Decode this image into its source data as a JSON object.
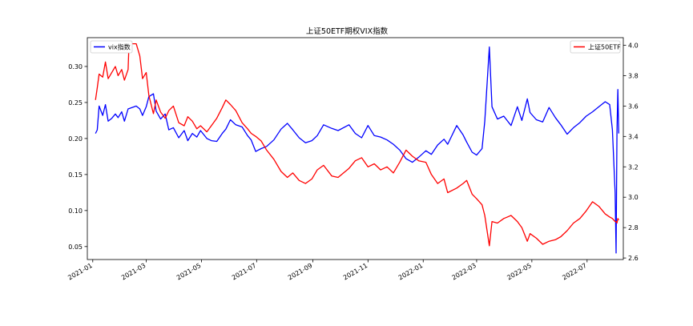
{
  "chart_data": {
    "type": "line",
    "title": "上证50ETF期权VIX指数",
    "xlabel": "",
    "x_ticks": [
      "2021-01",
      "2021-03",
      "2021-05",
      "2021-07",
      "2021-09",
      "2021-11",
      "2022-01",
      "2022-03",
      "2022-05",
      "2022-07"
    ],
    "y_left": {
      "label": "",
      "ticks": [
        "0.05",
        "0.10",
        "0.15",
        "0.20",
        "0.25",
        "0.30"
      ],
      "range": [
        0.032,
        0.34
      ]
    },
    "y_right": {
      "label": "",
      "ticks": [
        "2.6",
        "2.8",
        "3.0",
        "3.2",
        "3.4",
        "3.6",
        "3.8",
        "4.0"
      ],
      "range": [
        2.59,
        4.05
      ]
    },
    "x_range": [
      "2020-12-26",
      "2022-08-10"
    ],
    "legend_left": {
      "position": "upper left",
      "entries": [
        "vix指数"
      ]
    },
    "legend_right": {
      "position": "upper right",
      "entries": [
        "上证50ETF"
      ]
    },
    "series": [
      {
        "name": "vix指数",
        "axis": "left",
        "color": "#0000ff",
        "points": [
          [
            "2021-01-04",
            0.207
          ],
          [
            "2021-01-06",
            0.212
          ],
          [
            "2021-01-08",
            0.245
          ],
          [
            "2021-01-12",
            0.232
          ],
          [
            "2021-01-15",
            0.247
          ],
          [
            "2021-01-18",
            0.224
          ],
          [
            "2021-01-22",
            0.228
          ],
          [
            "2021-01-26",
            0.234
          ],
          [
            "2021-01-29",
            0.229
          ],
          [
            "2021-02-02",
            0.237
          ],
          [
            "2021-02-05",
            0.224
          ],
          [
            "2021-02-09",
            0.241
          ],
          [
            "2021-02-18",
            0.245
          ],
          [
            "2021-02-22",
            0.241
          ],
          [
            "2021-02-25",
            0.232
          ],
          [
            "2021-03-01",
            0.244
          ],
          [
            "2021-03-04",
            0.258
          ],
          [
            "2021-03-09",
            0.262
          ],
          [
            "2021-03-12",
            0.238
          ],
          [
            "2021-03-17",
            0.227
          ],
          [
            "2021-03-22",
            0.234
          ],
          [
            "2021-03-26",
            0.212
          ],
          [
            "2021-03-31",
            0.215
          ],
          [
            "2021-04-06",
            0.201
          ],
          [
            "2021-04-12",
            0.211
          ],
          [
            "2021-04-16",
            0.197
          ],
          [
            "2021-04-21",
            0.207
          ],
          [
            "2021-04-26",
            0.202
          ],
          [
            "2021-04-30",
            0.211
          ],
          [
            "2021-05-07",
            0.2
          ],
          [
            "2021-05-12",
            0.197
          ],
          [
            "2021-05-18",
            0.196
          ],
          [
            "2021-05-24",
            0.207
          ],
          [
            "2021-05-28",
            0.213
          ],
          [
            "2021-06-02",
            0.226
          ],
          [
            "2021-06-08",
            0.219
          ],
          [
            "2021-06-15",
            0.216
          ],
          [
            "2021-06-21",
            0.204
          ],
          [
            "2021-06-25",
            0.198
          ],
          [
            "2021-06-30",
            0.182
          ],
          [
            "2021-07-06",
            0.186
          ],
          [
            "2021-07-12",
            0.189
          ],
          [
            "2021-07-20",
            0.198
          ],
          [
            "2021-07-28",
            0.213
          ],
          [
            "2021-08-04",
            0.221
          ],
          [
            "2021-08-10",
            0.212
          ],
          [
            "2021-08-17",
            0.201
          ],
          [
            "2021-08-24",
            0.194
          ],
          [
            "2021-08-31",
            0.197
          ],
          [
            "2021-09-06",
            0.204
          ],
          [
            "2021-09-13",
            0.219
          ],
          [
            "2021-09-22",
            0.214
          ],
          [
            "2021-09-29",
            0.211
          ],
          [
            "2021-10-11",
            0.219
          ],
          [
            "2021-10-18",
            0.207
          ],
          [
            "2021-10-25",
            0.201
          ],
          [
            "2021-11-01",
            0.218
          ],
          [
            "2021-11-08",
            0.204
          ],
          [
            "2021-11-15",
            0.202
          ],
          [
            "2021-11-22",
            0.198
          ],
          [
            "2021-11-29",
            0.192
          ],
          [
            "2021-12-06",
            0.184
          ],
          [
            "2021-12-13",
            0.172
          ],
          [
            "2021-12-20",
            0.167
          ],
          [
            "2021-12-27",
            0.174
          ],
          [
            "2022-01-04",
            0.183
          ],
          [
            "2022-01-10",
            0.178
          ],
          [
            "2022-01-17",
            0.191
          ],
          [
            "2022-01-24",
            0.199
          ],
          [
            "2022-01-28",
            0.192
          ],
          [
            "2022-02-07",
            0.218
          ],
          [
            "2022-02-14",
            0.205
          ],
          [
            "2022-02-18",
            0.195
          ],
          [
            "2022-02-24",
            0.181
          ],
          [
            "2022-03-01",
            0.177
          ],
          [
            "2022-03-07",
            0.186
          ],
          [
            "2022-03-10",
            0.224
          ],
          [
            "2022-03-15",
            0.327
          ],
          [
            "2022-03-18",
            0.244
          ],
          [
            "2022-03-24",
            0.227
          ],
          [
            "2022-03-31",
            0.231
          ],
          [
            "2022-04-08",
            0.218
          ],
          [
            "2022-04-15",
            0.244
          ],
          [
            "2022-04-20",
            0.225
          ],
          [
            "2022-04-26",
            0.255
          ],
          [
            "2022-04-29",
            0.236
          ],
          [
            "2022-05-06",
            0.226
          ],
          [
            "2022-05-13",
            0.223
          ],
          [
            "2022-05-20",
            0.243
          ],
          [
            "2022-05-27",
            0.229
          ],
          [
            "2022-06-02",
            0.219
          ],
          [
            "2022-06-09",
            0.206
          ],
          [
            "2022-06-16",
            0.215
          ],
          [
            "2022-06-23",
            0.222
          ],
          [
            "2022-06-30",
            0.231
          ],
          [
            "2022-07-07",
            0.237
          ],
          [
            "2022-07-14",
            0.244
          ],
          [
            "2022-07-21",
            0.251
          ],
          [
            "2022-07-26",
            0.247
          ],
          [
            "2022-07-29",
            0.212
          ],
          [
            "2022-08-01",
            0.125
          ],
          [
            "2022-08-02",
            0.041
          ],
          [
            "2022-08-03",
            0.209
          ],
          [
            "2022-08-04",
            0.268
          ],
          [
            "2022-08-05",
            0.207
          ]
        ]
      },
      {
        "name": "上证50ETF",
        "axis": "right",
        "color": "#ff0000",
        "points": [
          [
            "2021-01-04",
            3.64
          ],
          [
            "2021-01-06",
            3.72
          ],
          [
            "2021-01-08",
            3.81
          ],
          [
            "2021-01-12",
            3.79
          ],
          [
            "2021-01-15",
            3.89
          ],
          [
            "2021-01-18",
            3.78
          ],
          [
            "2021-01-22",
            3.82
          ],
          [
            "2021-01-26",
            3.86
          ],
          [
            "2021-01-29",
            3.8
          ],
          [
            "2021-02-02",
            3.84
          ],
          [
            "2021-02-05",
            3.77
          ],
          [
            "2021-02-09",
            3.84
          ],
          [
            "2021-02-10",
            4.01
          ],
          [
            "2021-02-18",
            4.01
          ],
          [
            "2021-02-22",
            3.93
          ],
          [
            "2021-02-25",
            3.78
          ],
          [
            "2021-03-01",
            3.82
          ],
          [
            "2021-03-04",
            3.67
          ],
          [
            "2021-03-09",
            3.55
          ],
          [
            "2021-03-12",
            3.64
          ],
          [
            "2021-03-17",
            3.56
          ],
          [
            "2021-03-22",
            3.52
          ],
          [
            "2021-03-26",
            3.57
          ],
          [
            "2021-03-31",
            3.6
          ],
          [
            "2021-04-06",
            3.49
          ],
          [
            "2021-04-12",
            3.47
          ],
          [
            "2021-04-16",
            3.53
          ],
          [
            "2021-04-21",
            3.5
          ],
          [
            "2021-04-26",
            3.45
          ],
          [
            "2021-04-30",
            3.47
          ],
          [
            "2021-05-07",
            3.43
          ],
          [
            "2021-05-12",
            3.47
          ],
          [
            "2021-05-18",
            3.52
          ],
          [
            "2021-05-24",
            3.59
          ],
          [
            "2021-05-28",
            3.64
          ],
          [
            "2021-06-02",
            3.61
          ],
          [
            "2021-06-08",
            3.57
          ],
          [
            "2021-06-15",
            3.49
          ],
          [
            "2021-06-21",
            3.45
          ],
          [
            "2021-06-25",
            3.42
          ],
          [
            "2021-06-30",
            3.4
          ],
          [
            "2021-07-06",
            3.37
          ],
          [
            "2021-07-12",
            3.31
          ],
          [
            "2021-07-20",
            3.25
          ],
          [
            "2021-07-28",
            3.17
          ],
          [
            "2021-08-04",
            3.13
          ],
          [
            "2021-08-10",
            3.16
          ],
          [
            "2021-08-17",
            3.11
          ],
          [
            "2021-08-24",
            3.09
          ],
          [
            "2021-08-31",
            3.12
          ],
          [
            "2021-09-06",
            3.18
          ],
          [
            "2021-09-13",
            3.21
          ],
          [
            "2021-09-22",
            3.14
          ],
          [
            "2021-09-29",
            3.13
          ],
          [
            "2021-10-11",
            3.19
          ],
          [
            "2021-10-18",
            3.24
          ],
          [
            "2021-10-25",
            3.26
          ],
          [
            "2021-11-01",
            3.2
          ],
          [
            "2021-11-08",
            3.22
          ],
          [
            "2021-11-15",
            3.18
          ],
          [
            "2021-11-22",
            3.2
          ],
          [
            "2021-11-29",
            3.16
          ],
          [
            "2021-12-06",
            3.23
          ],
          [
            "2021-12-13",
            3.31
          ],
          [
            "2021-12-20",
            3.27
          ],
          [
            "2021-12-27",
            3.24
          ],
          [
            "2022-01-04",
            3.23
          ],
          [
            "2022-01-10",
            3.15
          ],
          [
            "2022-01-17",
            3.09
          ],
          [
            "2022-01-24",
            3.12
          ],
          [
            "2022-01-28",
            3.03
          ],
          [
            "2022-02-07",
            3.06
          ],
          [
            "2022-02-14",
            3.09
          ],
          [
            "2022-02-18",
            3.11
          ],
          [
            "2022-02-24",
            3.02
          ],
          [
            "2022-03-01",
            2.99
          ],
          [
            "2022-03-07",
            2.95
          ],
          [
            "2022-03-10",
            2.88
          ],
          [
            "2022-03-15",
            2.68
          ],
          [
            "2022-03-18",
            2.84
          ],
          [
            "2022-03-24",
            2.83
          ],
          [
            "2022-03-31",
            2.86
          ],
          [
            "2022-04-08",
            2.88
          ],
          [
            "2022-04-15",
            2.84
          ],
          [
            "2022-04-20",
            2.8
          ],
          [
            "2022-04-26",
            2.71
          ],
          [
            "2022-04-29",
            2.76
          ],
          [
            "2022-05-06",
            2.73
          ],
          [
            "2022-05-13",
            2.69
          ],
          [
            "2022-05-20",
            2.71
          ],
          [
            "2022-05-27",
            2.72
          ],
          [
            "2022-06-02",
            2.74
          ],
          [
            "2022-06-09",
            2.78
          ],
          [
            "2022-06-16",
            2.83
          ],
          [
            "2022-06-23",
            2.86
          ],
          [
            "2022-06-30",
            2.91
          ],
          [
            "2022-07-07",
            2.97
          ],
          [
            "2022-07-14",
            2.94
          ],
          [
            "2022-07-21",
            2.89
          ],
          [
            "2022-07-26",
            2.87
          ],
          [
            "2022-07-29",
            2.86
          ],
          [
            "2022-08-01",
            2.84
          ],
          [
            "2022-08-02",
            2.84
          ],
          [
            "2022-08-03",
            2.83
          ],
          [
            "2022-08-04",
            2.86
          ],
          [
            "2022-08-05",
            2.85
          ]
        ]
      }
    ]
  }
}
